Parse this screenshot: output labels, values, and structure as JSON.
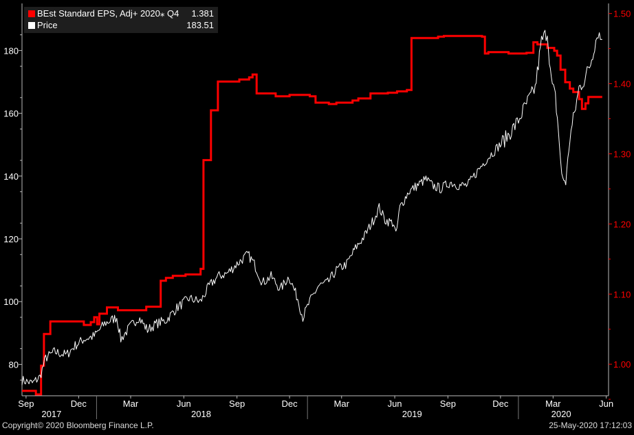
{
  "legend": [
    {
      "name": "BEst Standard EPS, Adj+ 2020⁎ Q4",
      "value": "1.381",
      "color": "#ff0000"
    },
    {
      "name": "Price",
      "value": "183.51",
      "color": "#ffffff"
    }
  ],
  "footer": {
    "copyright": "Copyright© 2020 Bloomberg Finance L.P.",
    "timestamp": "25-May-2020 17:12:03"
  },
  "chart_data": {
    "type": "line",
    "x_range": [
      "2017-08-25",
      "2020-06-05"
    ],
    "left_axis": {
      "ticks": [
        "80",
        "100",
        "120",
        "140",
        "160",
        "180"
      ],
      "range": [
        70,
        195
      ]
    },
    "right_axis": {
      "ticks": [
        "1.00",
        "1.10",
        "1.20",
        "1.30",
        "1.40",
        "1.50"
      ],
      "range": [
        0.955,
        1.5144
      ]
    },
    "month_labels": [
      {
        "label": "Sep",
        "date": "2017-09-01"
      },
      {
        "label": "Dec",
        "date": "2017-12-01"
      },
      {
        "label": "Mar",
        "date": "2018-03-01"
      },
      {
        "label": "Jun",
        "date": "2018-06-01"
      },
      {
        "label": "Sep",
        "date": "2018-09-01"
      },
      {
        "label": "Dec",
        "date": "2018-12-01"
      },
      {
        "label": "Mar",
        "date": "2019-03-01"
      },
      {
        "label": "Jun",
        "date": "2019-06-01"
      },
      {
        "label": "Sep",
        "date": "2019-09-01"
      },
      {
        "label": "Dec",
        "date": "2019-12-01"
      },
      {
        "label": "Mar",
        "date": "2020-03-01"
      },
      {
        "label": "Jun",
        "date": "2020-06-01"
      }
    ],
    "year_labels": [
      {
        "label": "2017",
        "date": "2017-10-15"
      },
      {
        "label": "2018",
        "date": "2018-07-01"
      },
      {
        "label": "2019",
        "date": "2019-07-01"
      },
      {
        "label": "2020",
        "date": "2020-03-15"
      }
    ],
    "year_separators": [
      "2018-01-01",
      "2019-01-01",
      "2020-01-01"
    ],
    "series": [
      {
        "name": "BEst Standard EPS, Adj+ 2020⁎ Q4",
        "axis": "right",
        "color": "#ff0000",
        "step": true,
        "points": [
          [
            "2017-08-25",
            0.962
          ],
          [
            "2017-09-18",
            0.957
          ],
          [
            "2017-09-27",
            0.998
          ],
          [
            "2017-10-02",
            1.043
          ],
          [
            "2017-10-13",
            1.061
          ],
          [
            "2017-12-10",
            1.056
          ],
          [
            "2017-12-22",
            1.06
          ],
          [
            "2017-12-28",
            1.067
          ],
          [
            "2018-01-02",
            1.057
          ],
          [
            "2018-01-06",
            1.072
          ],
          [
            "2018-01-19",
            1.081
          ],
          [
            "2018-02-05",
            1.081
          ],
          [
            "2018-02-07",
            1.077
          ],
          [
            "2018-03-28",
            1.082
          ],
          [
            "2018-04-22",
            1.119
          ],
          [
            "2018-05-01",
            1.123
          ],
          [
            "2018-05-13",
            1.126
          ],
          [
            "2018-06-04",
            1.128
          ],
          [
            "2018-06-30",
            1.136
          ],
          [
            "2018-07-05",
            1.291
          ],
          [
            "2018-07-18",
            1.362
          ],
          [
            "2018-07-30",
            1.403
          ],
          [
            "2018-09-05",
            1.406
          ],
          [
            "2018-09-22",
            1.409
          ],
          [
            "2018-09-28",
            1.413
          ],
          [
            "2018-10-05",
            1.386
          ],
          [
            "2018-11-07",
            1.382
          ],
          [
            "2018-12-01",
            1.384
          ],
          [
            "2019-01-05",
            1.382
          ],
          [
            "2019-01-15",
            1.373
          ],
          [
            "2019-02-07",
            1.371
          ],
          [
            "2019-02-20",
            1.373
          ],
          [
            "2019-03-20",
            1.376
          ],
          [
            "2019-03-30",
            1.379
          ],
          [
            "2019-04-20",
            1.386
          ],
          [
            "2019-05-20",
            1.387
          ],
          [
            "2019-06-05",
            1.389
          ],
          [
            "2019-06-22",
            1.391
          ],
          [
            "2019-06-30",
            1.465
          ],
          [
            "2019-08-15",
            1.467
          ],
          [
            "2019-08-25",
            1.468
          ],
          [
            "2019-10-30",
            1.467
          ],
          [
            "2019-11-04",
            1.443
          ],
          [
            "2019-11-10",
            1.445
          ],
          [
            "2019-12-15",
            1.443
          ],
          [
            "2020-01-15",
            1.444
          ],
          [
            "2020-01-27",
            1.459
          ],
          [
            "2020-02-03",
            1.456
          ],
          [
            "2020-02-20",
            1.451
          ],
          [
            "2020-03-03",
            1.447
          ],
          [
            "2020-03-08",
            1.44
          ],
          [
            "2020-03-14",
            1.42
          ],
          [
            "2020-03-22",
            1.402
          ],
          [
            "2020-03-30",
            1.393
          ],
          [
            "2020-04-05",
            1.388
          ],
          [
            "2020-04-15",
            1.378
          ],
          [
            "2020-04-20",
            1.364
          ],
          [
            "2020-04-26",
            1.372
          ],
          [
            "2020-05-01",
            1.381
          ],
          [
            "2020-05-25",
            1.381
          ]
        ]
      },
      {
        "name": "Price",
        "axis": "left",
        "color": "#ffffff",
        "step": false,
        "noisy": true,
        "points": [
          [
            "2017-08-25",
            75
          ],
          [
            "2017-09-12",
            74
          ],
          [
            "2017-09-25",
            76
          ],
          [
            "2017-10-05",
            82
          ],
          [
            "2017-10-20",
            84
          ],
          [
            "2017-11-10",
            83
          ],
          [
            "2017-11-25",
            86
          ],
          [
            "2017-12-10",
            88
          ],
          [
            "2017-12-28",
            89
          ],
          [
            "2018-01-15",
            93
          ],
          [
            "2018-02-05",
            95
          ],
          [
            "2018-02-12",
            88
          ],
          [
            "2018-02-28",
            92
          ],
          [
            "2018-03-15",
            95
          ],
          [
            "2018-03-30",
            91
          ],
          [
            "2018-04-15",
            93
          ],
          [
            "2018-05-01",
            94
          ],
          [
            "2018-05-20",
            98
          ],
          [
            "2018-06-10",
            101
          ],
          [
            "2018-06-30",
            100
          ],
          [
            "2018-07-15",
            105
          ],
          [
            "2018-07-30",
            108
          ],
          [
            "2018-08-15",
            109
          ],
          [
            "2018-09-01",
            112
          ],
          [
            "2018-09-20",
            115
          ],
          [
            "2018-10-01",
            112
          ],
          [
            "2018-10-15",
            106
          ],
          [
            "2018-10-30",
            108
          ],
          [
            "2018-11-15",
            104
          ],
          [
            "2018-11-30",
            108
          ],
          [
            "2018-12-15",
            101
          ],
          [
            "2018-12-24",
            95
          ],
          [
            "2019-01-05",
            100
          ],
          [
            "2019-01-20",
            105
          ],
          [
            "2019-02-05",
            106
          ],
          [
            "2019-02-20",
            110
          ],
          [
            "2019-03-10",
            112
          ],
          [
            "2019-03-25",
            117
          ],
          [
            "2019-04-10",
            121
          ],
          [
            "2019-04-25",
            126
          ],
          [
            "2019-05-05",
            130
          ],
          [
            "2019-05-15",
            126
          ],
          [
            "2019-05-30",
            125
          ],
          [
            "2019-06-03",
            121
          ],
          [
            "2019-06-10",
            130
          ],
          [
            "2019-06-25",
            135
          ],
          [
            "2019-07-10",
            137
          ],
          [
            "2019-07-25",
            139
          ],
          [
            "2019-08-05",
            137
          ],
          [
            "2019-08-20",
            136
          ],
          [
            "2019-09-05",
            138
          ],
          [
            "2019-09-20",
            137
          ],
          [
            "2019-10-05",
            137
          ],
          [
            "2019-10-20",
            141
          ],
          [
            "2019-11-05",
            145
          ],
          [
            "2019-11-25",
            149
          ],
          [
            "2019-12-10",
            152
          ],
          [
            "2019-12-30",
            157
          ],
          [
            "2020-01-15",
            163
          ],
          [
            "2020-01-30",
            168
          ],
          [
            "2020-02-10",
            183
          ],
          [
            "2020-02-20",
            186
          ],
          [
            "2020-02-27",
            170
          ],
          [
            "2020-03-05",
            165
          ],
          [
            "2020-03-10",
            155
          ],
          [
            "2020-03-16",
            140
          ],
          [
            "2020-03-23",
            138
          ],
          [
            "2020-03-30",
            152
          ],
          [
            "2020-04-07",
            160
          ],
          [
            "2020-04-15",
            168
          ],
          [
            "2020-04-25",
            171
          ],
          [
            "2020-05-05",
            176
          ],
          [
            "2020-05-12",
            182
          ],
          [
            "2020-05-18",
            186
          ],
          [
            "2020-05-22",
            184
          ],
          [
            "2020-05-25",
            183.5
          ]
        ]
      }
    ]
  }
}
